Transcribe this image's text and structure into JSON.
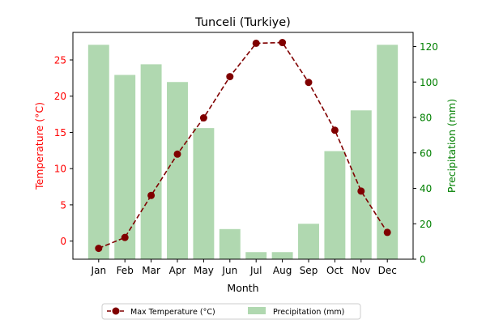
{
  "chart_data": {
    "type": "bar",
    "title": "Tunceli (Turkiye)",
    "xlabel": "Month",
    "ylabel_left": "Temperature (°C)",
    "ylabel_right": "Precipitation (mm)",
    "categories": [
      "Jan",
      "Feb",
      "Mar",
      "Apr",
      "May",
      "Jun",
      "Jul",
      "Aug",
      "Sep",
      "Oct",
      "Nov",
      "Dec"
    ],
    "y_left": {
      "range": [
        -2.5,
        28.8
      ],
      "ticks": [
        0,
        5,
        10,
        15,
        20,
        25
      ],
      "color": "#ff0000"
    },
    "y_right": {
      "range": [
        0,
        128
      ],
      "ticks": [
        0,
        20,
        40,
        60,
        80,
        100,
        120
      ],
      "color": "#008000"
    },
    "series": [
      {
        "name": "Max Temperature (°C)",
        "type": "line",
        "axis": "left",
        "values": [
          -1.0,
          0.5,
          6.3,
          12.0,
          17.0,
          22.7,
          27.3,
          27.4,
          21.9,
          15.3,
          6.9,
          1.2
        ],
        "color": "#800000",
        "line_style": "dashed",
        "marker": "circle"
      },
      {
        "name": "Precipitation (mm)",
        "type": "bar",
        "axis": "right",
        "values": [
          121,
          104,
          110,
          100,
          74,
          17,
          4,
          4,
          20,
          61,
          84,
          121
        ],
        "color": "#b0d8b0"
      }
    ],
    "grid": false,
    "legend": {
      "placement": "bottom-center",
      "ncol": 2
    }
  }
}
